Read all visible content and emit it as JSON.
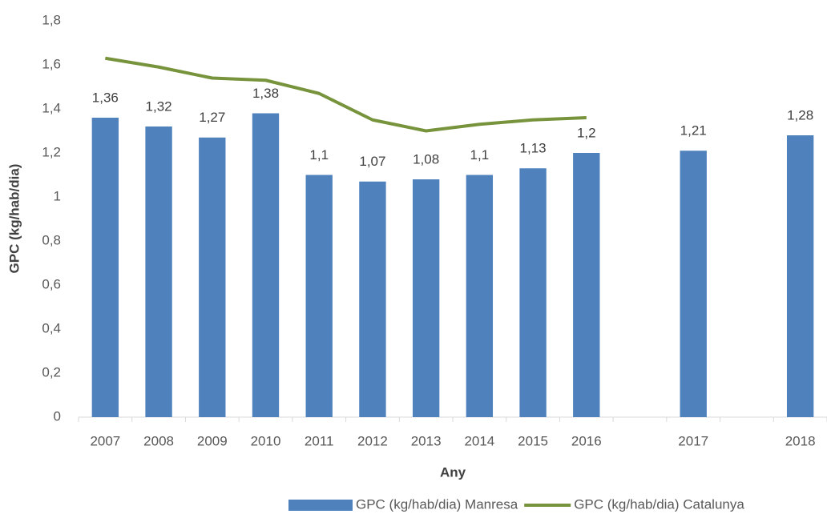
{
  "chart_data": {
    "type": "bar+line",
    "x_label": "Any",
    "y_label": "GPC (kg/hab/dia)",
    "categories": [
      "2007",
      "2008",
      "2009",
      "2010",
      "2011",
      "2012",
      "2013",
      "2014",
      "2015",
      "2016",
      null,
      "2017",
      null,
      "2018"
    ],
    "series": [
      {
        "name": "GPC (kg/hab/dia) Manresa",
        "type": "bar",
        "color": "#4f81bd",
        "values": [
          1.36,
          1.32,
          1.27,
          1.38,
          1.1,
          1.07,
          1.08,
          1.1,
          1.13,
          1.2,
          null,
          1.21,
          null,
          1.28
        ],
        "value_labels": [
          "1,36",
          "1,32",
          "1,27",
          "1,38",
          "1,1",
          "1,07",
          "1,08",
          "1,1",
          "1,13",
          "1,2",
          null,
          "1,21",
          null,
          "1,28"
        ]
      },
      {
        "name": "GPC (kg/hab/dia) Catalunya",
        "type": "line",
        "color": "#77933c",
        "values": [
          1.63,
          1.59,
          1.54,
          1.53,
          1.47,
          1.35,
          1.3,
          1.33,
          1.35,
          1.36,
          null,
          null,
          null,
          null
        ]
      }
    ],
    "ylim": [
      0,
      1.8
    ],
    "yticks": [
      0,
      {
        "value": 0.2,
        "label": "0,2"
      },
      {
        "value": 0.4,
        "label": "0,4"
      },
      {
        "value": 0.6,
        "label": "0,6"
      },
      {
        "value": 0.8,
        "label": "0,8"
      },
      1,
      {
        "value": 1.2,
        "label": "1,2"
      },
      {
        "value": 1.4,
        "label": "1,4"
      },
      {
        "value": 1.6,
        "label": "1,6"
      },
      {
        "value": 1.8,
        "label": "1,8"
      }
    ],
    "grid": false,
    "legend": "bottom"
  }
}
